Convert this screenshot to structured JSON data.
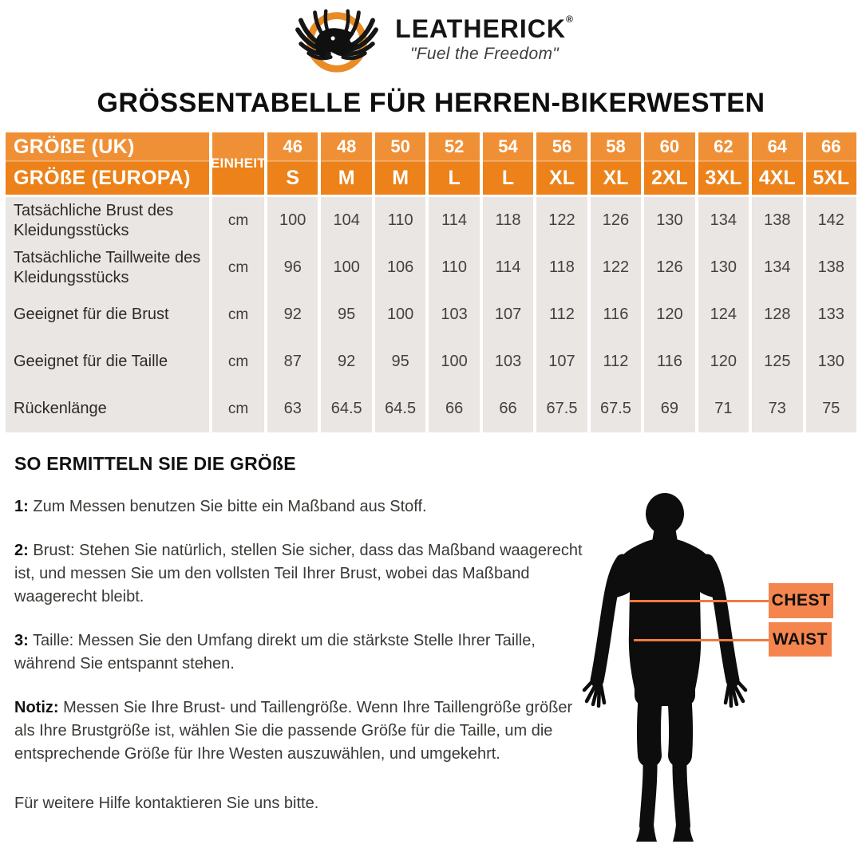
{
  "brand": {
    "name": "LEATHERICK",
    "registered": "®",
    "tagline": "\"Fuel the Freedom\""
  },
  "title": "GRÖSSENTABELLE FÜR HERREN-BIKERWESTEN",
  "table": {
    "header": {
      "row1_label": "GRÖßE (UK)",
      "row2_label": "GRÖßE (EUROPA)",
      "unit_label": "EINHEIT",
      "columns": [
        {
          "uk": "46",
          "eu": "S"
        },
        {
          "uk": "48",
          "eu": "M"
        },
        {
          "uk": "50",
          "eu": "M"
        },
        {
          "uk": "52",
          "eu": "L"
        },
        {
          "uk": "54",
          "eu": "L"
        },
        {
          "uk": "56",
          "eu": "XL"
        },
        {
          "uk": "58",
          "eu": "XL"
        },
        {
          "uk": "60",
          "eu": "2XL"
        },
        {
          "uk": "62",
          "eu": "3XL"
        },
        {
          "uk": "64",
          "eu": "4XL"
        },
        {
          "uk": "66",
          "eu": "5XL"
        }
      ]
    },
    "rows": [
      {
        "label": "Tatsächliche Brust des Kleidungsstücks",
        "unit": "cm",
        "values": [
          "100",
          "104",
          "110",
          "114",
          "118",
          "122",
          "126",
          "130",
          "134",
          "138",
          "142"
        ]
      },
      {
        "label": "Tatsächliche Taillweite des Kleidungsstücks",
        "unit": "cm",
        "values": [
          "96",
          "100",
          "106",
          "110",
          "114",
          "118",
          "122",
          "126",
          "130",
          "134",
          "138"
        ]
      },
      {
        "label": "Geeignet für die Brust",
        "unit": "cm",
        "values": [
          "92",
          "95",
          "100",
          "103",
          "107",
          "112",
          "116",
          "120",
          "124",
          "128",
          "133"
        ]
      },
      {
        "label": "Geeignet für die Taille",
        "unit": "cm",
        "values": [
          "87",
          "92",
          "95",
          "100",
          "103",
          "107",
          "112",
          "116",
          "120",
          "125",
          "130"
        ]
      },
      {
        "label": "Rückenlänge",
        "unit": "cm",
        "values": [
          "63",
          "64.5",
          "64.5",
          "66",
          "66",
          "67.5",
          "67.5",
          "69",
          "71",
          "73",
          "75"
        ]
      }
    ]
  },
  "guide": {
    "heading": "SO ERMITTELN SIE DIE GRÖßE",
    "steps": [
      {
        "prefix": "1",
        "text": "Zum Messen benutzen Sie bitte ein Maßband aus Stoff."
      },
      {
        "prefix": "2",
        "text": "Brust: Stehen Sie natürlich, stellen Sie sicher, dass das Maßband waagerecht ist, und messen Sie um den vollsten Teil Ihrer Brust, wobei das Maßband waagerecht bleibt."
      },
      {
        "prefix": "3",
        "text": "Taille: Messen Sie den Umfang direkt um die stärkste Stelle Ihrer Taille, während Sie entspannt stehen."
      },
      {
        "prefix": "Notiz",
        "text": "Messen Sie Ihre Brust- und Taillengröße. Wenn Ihre Taillengröße größer als Ihre Brustgröße ist, wählen Sie die passende Größe für die Taille, um die entsprechende Größe für Ihre Westen auszuwählen, und umgekehrt."
      }
    ],
    "footer": "Für weitere Hilfe kontaktieren Sie uns bitte."
  },
  "diagram": {
    "chest_label": "CHEST",
    "waist_label": "WAIST"
  },
  "colors": {
    "header_orange_top": "#F09036",
    "header_orange_bottom": "#EC8219",
    "cell_gray": "#EAE6E3",
    "label_box_orange": "#F5854E",
    "line_orange": "#EF7A40",
    "logo_ring_orange": "#E98C26"
  }
}
